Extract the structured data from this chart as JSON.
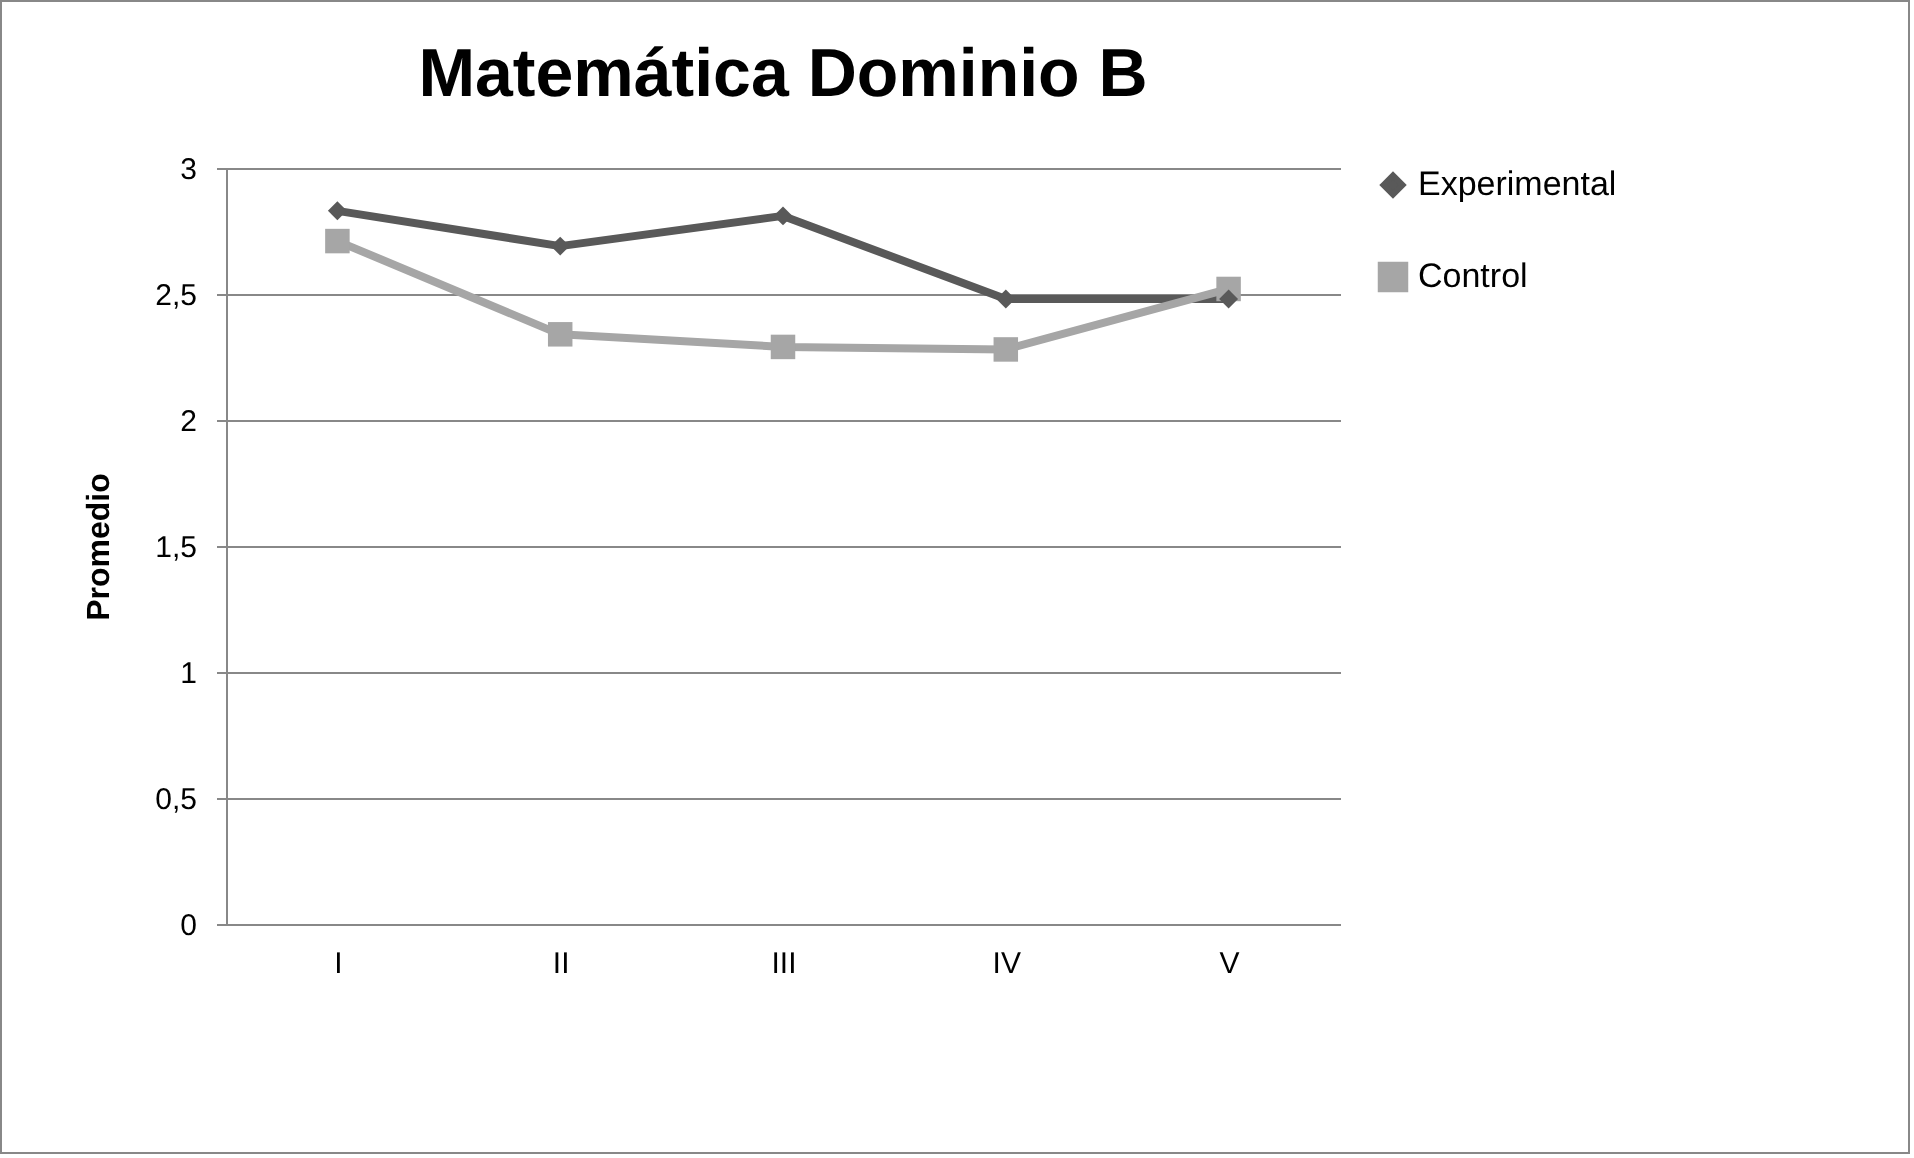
{
  "chart_data": {
    "type": "line",
    "title": "Matemática Dominio B",
    "ylabel": "Promedio",
    "categories": [
      "I",
      "II",
      "III",
      "IV",
      "V"
    ],
    "series": [
      {
        "name": "Experimental",
        "color": "#595959",
        "marker": "diamond",
        "values": [
          2.83,
          2.69,
          2.81,
          2.48,
          2.48
        ]
      },
      {
        "name": "Control",
        "color": "#a6a6a6",
        "marker": "square",
        "values": [
          2.71,
          2.34,
          2.29,
          2.28,
          2.52
        ]
      }
    ],
    "ylim": [
      0,
      3
    ],
    "yticks": [
      0,
      {
        "value": 0.5,
        "label": "0,5"
      },
      1,
      {
        "value": 1.5,
        "label": "1,5"
      },
      2,
      {
        "value": 2.5,
        "label": "2,5"
      },
      3
    ],
    "grid": "y",
    "legend": "right",
    "marker": "diamond",
    "line_style": "solid"
  }
}
